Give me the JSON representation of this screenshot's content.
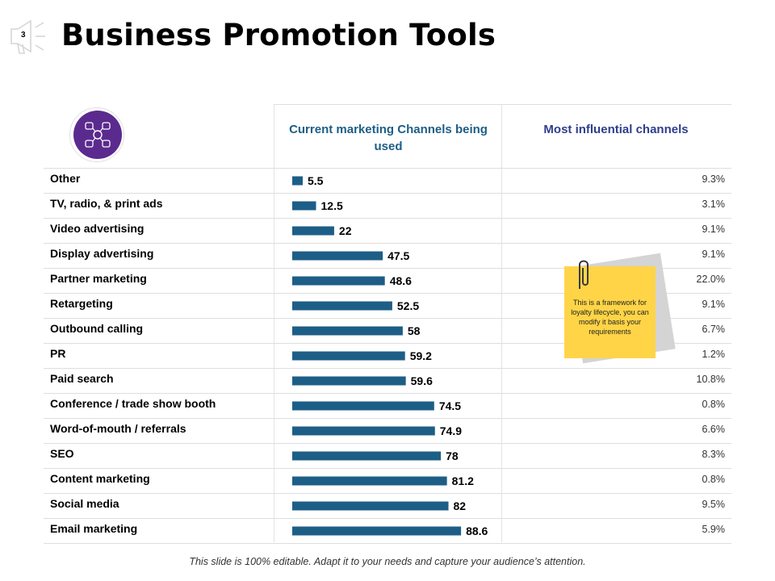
{
  "slide": {
    "number": "3",
    "title": "Business Promotion Tools",
    "footer": "This slide is 100% editable. Adapt it to your needs and capture your audience’s attention."
  },
  "icons": {
    "megaphone": "megaphone-icon",
    "logo": "social-media-network-icon",
    "paperclip": "paperclip-icon"
  },
  "note": {
    "text": "This is a framework for loyalty lifecycle, you can modify it basis your requirements"
  },
  "colors": {
    "bar": "#1d5e87",
    "logo": "#5b2a8e",
    "note": "#ffd547",
    "header_current": "#1d5e87",
    "header_influential": "#2e3e8c"
  },
  "chart_data": {
    "type": "bar",
    "orientation": "horizontal",
    "columns": [
      "Current marketing  Channels being  used",
      "Most influential  channels"
    ],
    "categories": [
      "Other",
      "TV, radio, & print ads",
      "Video advertising",
      "Display advertising",
      "Partner marketing",
      "Retargeting",
      "Outbound calling",
      "PR",
      "Paid search",
      "Conference / trade show booth",
      "Word-of-mouth / referrals",
      "SEO",
      "Content marketing",
      "Social media",
      "Email marketing"
    ],
    "series": [
      {
        "values": [
          5.5,
          12.5,
          22,
          47.5,
          48.6,
          52.5,
          58,
          59.2,
          59.6,
          74.5,
          74.9,
          78,
          81.2,
          82,
          88.6
        ]
      }
    ],
    "value_labels": [
      "5.5",
      "12.5",
      "22",
      "47.5",
      "48.6",
      "52.5",
      "58",
      "59.2",
      "59.6",
      "74.5",
      "74.9",
      "78",
      "81.2",
      "82",
      "88.6"
    ],
    "influential": [
      "9.3%",
      "3.1%",
      "9.1%",
      "9.1%",
      "22.0%",
      "9.1%",
      "6.7%",
      "1.2%",
      "10.8%",
      "0.8%",
      "6.6%",
      "8.3%",
      "0.8%",
      "9.5%",
      "5.9%"
    ],
    "xlim": [
      0,
      100
    ]
  }
}
